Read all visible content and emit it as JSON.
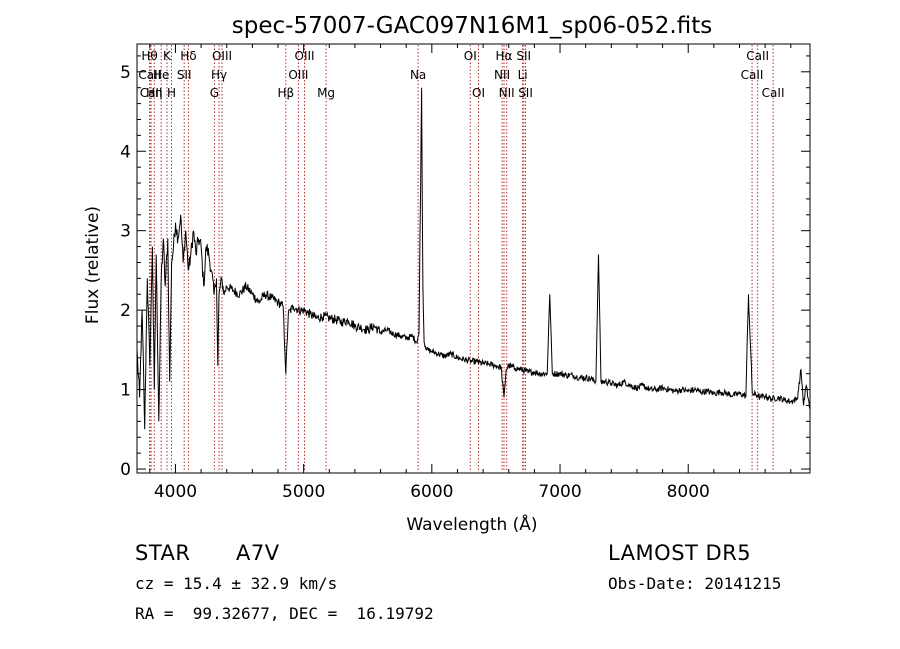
{
  "chart_data": {
    "type": "line",
    "title": "spec-57007-GAC097N16M1_sp06-052.fits",
    "xlabel": "Wavelength (Å)",
    "ylabel": "Flux (relative)",
    "xlim": [
      3700,
      8950
    ],
    "ylim": [
      -0.05,
      5.35
    ],
    "xticks": [
      4000,
      5000,
      6000,
      7000,
      8000
    ],
    "yticks": [
      0,
      1,
      2,
      3,
      4,
      5
    ],
    "grid": false,
    "legend": "none",
    "line_color": "#000000",
    "marker_color": "#b03030",
    "spectrum": {
      "x": [
        3700,
        3720,
        3740,
        3760,
        3780,
        3800,
        3820,
        3835,
        3850,
        3870,
        3889,
        3905,
        3920,
        3940,
        3955,
        3970,
        3985,
        4000,
        4020,
        4040,
        4060,
        4080,
        4101,
        4120,
        4140,
        4160,
        4180,
        4200,
        4220,
        4240,
        4260,
        4280,
        4300,
        4320,
        4330,
        4340,
        4360,
        4380,
        4400,
        4450,
        4500,
        4550,
        4600,
        4650,
        4700,
        4750,
        4800,
        4840,
        4861,
        4880,
        4920,
        4960,
        5000,
        5050,
        5100,
        5150,
        5200,
        5250,
        5300,
        5350,
        5400,
        5450,
        5500,
        5550,
        5600,
        5650,
        5700,
        5750,
        5800,
        5850,
        5880,
        5900,
        5920,
        5930,
        5940,
        5950,
        5960,
        6000,
        6050,
        6100,
        6150,
        6200,
        6250,
        6300,
        6350,
        6400,
        6450,
        6500,
        6540,
        6563,
        6580,
        6600,
        6650,
        6700,
        6750,
        6800,
        6850,
        6900,
        6920,
        6940,
        7000,
        7050,
        7100,
        7150,
        7200,
        7250,
        7280,
        7300,
        7320,
        7350,
        7400,
        7450,
        7500,
        7550,
        7600,
        7650,
        7700,
        7750,
        7800,
        7850,
        7900,
        7950,
        8000,
        8050,
        8100,
        8150,
        8200,
        8250,
        8300,
        8350,
        8400,
        8450,
        8470,
        8500,
        8542,
        8560,
        8600,
        8650,
        8700,
        8750,
        8800,
        8850,
        8880,
        8900,
        8920,
        8950
      ],
      "y": [
        1.5,
        0.9,
        2.0,
        0.5,
        2.4,
        1.3,
        2.8,
        1.0,
        2.7,
        0.6,
        2.4,
        2.9,
        2.3,
        2.9,
        1.1,
        2.6,
        2.8,
        3.1,
        2.9,
        3.2,
        2.6,
        3.0,
        2.5,
        2.7,
        3.0,
        2.7,
        2.9,
        2.8,
        2.3,
        2.8,
        2.7,
        2.5,
        2.2,
        2.4,
        1.3,
        2.2,
        2.4,
        2.2,
        2.3,
        2.25,
        2.2,
        2.3,
        2.2,
        2.1,
        2.2,
        2.15,
        2.1,
        2.05,
        1.2,
        1.95,
        2.05,
        2.0,
        2.0,
        1.95,
        1.9,
        1.92,
        1.9,
        1.88,
        1.85,
        1.87,
        1.8,
        1.78,
        1.75,
        1.8,
        1.72,
        1.75,
        1.7,
        1.68,
        1.65,
        1.67,
        1.6,
        1.7,
        4.8,
        2.3,
        1.6,
        1.55,
        1.5,
        1.48,
        1.45,
        1.42,
        1.45,
        1.4,
        1.38,
        1.36,
        1.35,
        1.33,
        1.32,
        1.3,
        1.28,
        0.9,
        1.25,
        1.3,
        1.27,
        1.25,
        1.22,
        1.22,
        1.2,
        1.2,
        2.2,
        1.2,
        1.2,
        1.18,
        1.18,
        1.15,
        1.15,
        1.13,
        1.1,
        2.7,
        1.1,
        1.1,
        1.08,
        1.05,
        1.1,
        1.05,
        1.02,
        1.05,
        1.0,
        1.0,
        1.02,
        1.0,
        0.98,
        1.0,
        0.98,
        1.0,
        0.97,
        0.98,
        0.95,
        0.97,
        0.95,
        0.93,
        0.95,
        0.92,
        2.2,
        0.95,
        0.93,
        0.9,
        0.92,
        0.88,
        0.9,
        0.87,
        0.85,
        0.88,
        1.25,
        0.8,
        1.05,
        0.75
      ]
    },
    "lines": [
      {
        "label": "Hθ",
        "wl": 3798,
        "row": 0
      },
      {
        "label": "CaII",
        "wl": 3800,
        "row": 1
      },
      {
        "label": "CaII",
        "wl": 3810,
        "row": 2
      },
      {
        "label": "Hη",
        "wl": 3835,
        "row": 2
      },
      {
        "label": "He",
        "wl": 3889,
        "row": 1
      },
      {
        "label": "K",
        "wl": 3934,
        "row": 0
      },
      {
        "label": "H",
        "wl": 3969,
        "row": 2
      },
      {
        "label": "SII",
        "wl": 4068,
        "row": 1
      },
      {
        "label": "Hδ",
        "wl": 4101,
        "row": 0
      },
      {
        "label": "G",
        "wl": 4304,
        "row": 2
      },
      {
        "label": "Hγ",
        "wl": 4340,
        "row": 1
      },
      {
        "label": "OIII",
        "wl": 4363,
        "row": 0
      },
      {
        "label": "Hβ",
        "wl": 4861,
        "row": 2
      },
      {
        "label": "OIII",
        "wl": 4959,
        "row": 1
      },
      {
        "label": "OIII",
        "wl": 5007,
        "row": 0
      },
      {
        "label": "Mg",
        "wl": 5175,
        "row": 2
      },
      {
        "label": "Na",
        "wl": 5893,
        "row": 1
      },
      {
        "label": "OI",
        "wl": 6300,
        "row": 0
      },
      {
        "label": "OI",
        "wl": 6364,
        "row": 2
      },
      {
        "label": "NII",
        "wl": 6548,
        "row": 1
      },
      {
        "label": "Hα",
        "wl": 6563,
        "row": 0
      },
      {
        "label": "NII",
        "wl": 6584,
        "row": 2
      },
      {
        "label": "Li",
        "wl": 6708,
        "row": 1
      },
      {
        "label": "SII",
        "wl": 6717,
        "row": 0
      },
      {
        "label": "SII",
        "wl": 6731,
        "row": 2
      },
      {
        "label": "CaII",
        "wl": 8498,
        "row": 1
      },
      {
        "label": "CaII",
        "wl": 8542,
        "row": 0
      },
      {
        "label": "CaII",
        "wl": 8662,
        "row": 2
      }
    ]
  },
  "info": {
    "class": "STAR",
    "subclass": "A7V",
    "survey": "LAMOST DR5",
    "cz": "cz = 15.4 ± 32.9 km/s",
    "obs_date": "Obs-Date: 20141215",
    "radec": "RA =  99.32677, DEC =  16.19792"
  }
}
